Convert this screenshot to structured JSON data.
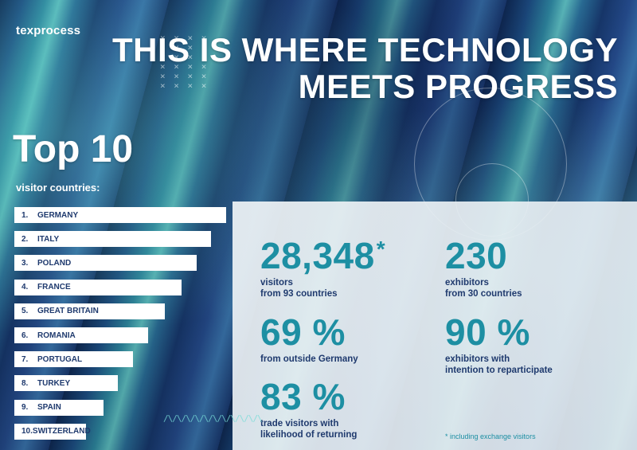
{
  "brand": "texprocess",
  "headline": {
    "line1": "THIS IS WHERE TECHNOLOGY",
    "line2": "MEETS PROGRESS"
  },
  "top_countries": {
    "title": "Top 10",
    "subtitle": "visitor countries:",
    "items": [
      {
        "rank": "1.",
        "country": "GERMANY",
        "relative_length": 1.0
      },
      {
        "rank": "2.",
        "country": "ITALY",
        "relative_length": 0.93
      },
      {
        "rank": "3.",
        "country": "POLAND",
        "relative_length": 0.86
      },
      {
        "rank": "4.",
        "country": "FRANCE",
        "relative_length": 0.79
      },
      {
        "rank": "5.",
        "country": "GREAT BRITAIN",
        "relative_length": 0.71
      },
      {
        "rank": "6.",
        "country": "ROMANIA",
        "relative_length": 0.63
      },
      {
        "rank": "7.",
        "country": "PORTUGAL",
        "relative_length": 0.56
      },
      {
        "rank": "8.",
        "country": "TURKEY",
        "relative_length": 0.49
      },
      {
        "rank": "9.",
        "country": "SPAIN",
        "relative_length": 0.42
      },
      {
        "rank": "10.",
        "country": "SWITZERLAND",
        "relative_length": 0.34
      }
    ]
  },
  "stats": {
    "visitors": {
      "value": "28,348",
      "marker": "*",
      "label1": "visitors",
      "label2": "from 93 countries"
    },
    "exhibitors": {
      "value": "230",
      "label1": "exhibitors",
      "label2": "from 30 countries"
    },
    "outside_germany": {
      "value": "69 %",
      "label1": "from outside Germany"
    },
    "reparticipate": {
      "value": "90 %",
      "label1": "exhibitors with",
      "label2": "intention to reparticipate"
    },
    "returning": {
      "value": "83 %",
      "label1": "trade visitors with",
      "label2": "likelihood of returning"
    }
  },
  "footnote": "* including exchange visitors",
  "colors": {
    "accent_teal": "#1d8fa3",
    "text_navy": "#1f3a6e",
    "bar_white": "#ffffff"
  }
}
